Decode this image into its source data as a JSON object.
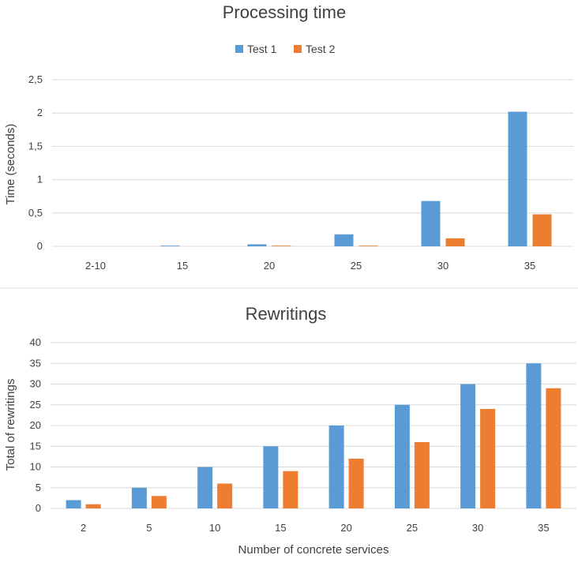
{
  "chart_data": [
    {
      "type": "bar",
      "title": "Processing time",
      "xlabel": "",
      "ylabel": "Time (seconds)",
      "categories": [
        "2-10",
        "15",
        "20",
        "25",
        "30",
        "35"
      ],
      "series": [
        {
          "name": "Test 1",
          "color": "#5b9bd5",
          "values": [
            0,
            0.01,
            0.03,
            0.18,
            0.68,
            2.02
          ]
        },
        {
          "name": "Test 2",
          "color": "#ed7d31",
          "values": [
            0,
            0,
            0.01,
            0.01,
            0.12,
            0.48
          ]
        }
      ],
      "ylim": [
        0,
        2.5
      ],
      "yticks": [
        "0",
        "0,5",
        "1",
        "1,5",
        "2",
        "2,5"
      ],
      "grid": true,
      "legend": "top-center"
    },
    {
      "type": "bar",
      "title": "Rewritings",
      "xlabel": "Number of concrete services",
      "ylabel": "Total of rewritings",
      "categories": [
        "2",
        "5",
        "10",
        "15",
        "20",
        "25",
        "30",
        "35"
      ],
      "series": [
        {
          "name": "Test 1",
          "color": "#5b9bd5",
          "values": [
            2,
            5,
            10,
            15,
            20,
            25,
            30,
            35
          ]
        },
        {
          "name": "Test 2",
          "color": "#ed7d31",
          "values": [
            1,
            3,
            6,
            9,
            12,
            16,
            24,
            29
          ]
        }
      ],
      "ylim": [
        0,
        40
      ],
      "yticks": [
        "0",
        "5",
        "10",
        "15",
        "20",
        "25",
        "30",
        "35",
        "40"
      ],
      "grid": true,
      "legend": "none"
    }
  ]
}
